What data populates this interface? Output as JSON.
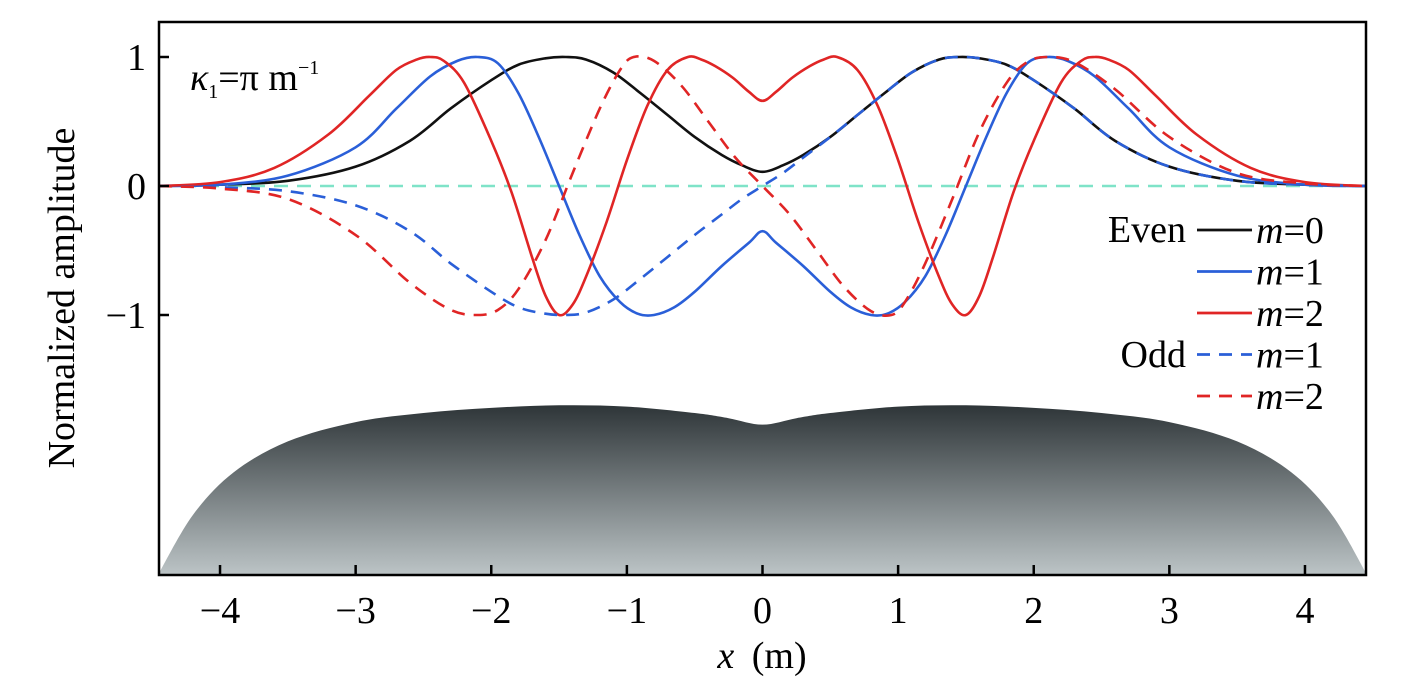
{
  "chart_data": {
    "type": "line",
    "xlabel_var": "x",
    "xlabel_unit": "(m)",
    "ylabel": "Normalized amplitude",
    "xlim": [
      -4.45,
      4.45
    ],
    "ylim": [
      -3.0,
      1.25
    ],
    "x_ticks": [
      -4,
      -3,
      -2,
      -1,
      0,
      1,
      2,
      3,
      4
    ],
    "x_tick_labels": [
      "−4",
      "−3",
      "−2",
      "−1",
      "0",
      "1",
      "2",
      "3",
      "4"
    ],
    "y_ticks": [
      1,
      0,
      -1
    ],
    "y_tick_labels": [
      "1",
      "0",
      "−1"
    ],
    "annotation": {
      "symbol": "κ",
      "sub": "1",
      "mid": "=π m",
      "sup": "−1"
    },
    "zero_line": {
      "y": 0,
      "color": "#7fe3c8"
    },
    "legend": {
      "placement": "right",
      "even_label": "Even",
      "odd_label": "Odd",
      "entries": [
        {
          "group": "Even",
          "var": "m",
          "eq": "=0",
          "color": "#111111",
          "dash": false
        },
        {
          "group": "Even",
          "var": "m",
          "eq": "=1",
          "color": "#2a5fd8",
          "dash": false
        },
        {
          "group": "Even",
          "var": "m",
          "eq": "=2",
          "color": "#e02525",
          "dash": false
        },
        {
          "group": "Odd",
          "var": "m",
          "eq": "=1",
          "color": "#2a5fd8",
          "dash": true
        },
        {
          "group": "Odd",
          "var": "m",
          "eq": "=2",
          "color": "#e02525",
          "dash": true
        }
      ]
    },
    "series": [
      {
        "name": "Even m=0",
        "color": "#111111",
        "dash": false,
        "x": [
          -4.45,
          -4.0,
          -3.5,
          -3.0,
          -2.6,
          -2.3,
          -2.0,
          -1.8,
          -1.6,
          -1.45,
          -1.3,
          -1.1,
          -0.9,
          -0.7,
          -0.5,
          -0.3,
          -0.15,
          0,
          0.15,
          0.3,
          0.5,
          0.7,
          0.9,
          1.1,
          1.3,
          1.45,
          1.6,
          1.8,
          2.0,
          2.3,
          2.6,
          3.0,
          3.5,
          4.0,
          4.45
        ],
        "y": [
          0.0,
          0.01,
          0.04,
          0.15,
          0.35,
          0.6,
          0.82,
          0.94,
          0.99,
          1.0,
          0.98,
          0.88,
          0.72,
          0.55,
          0.38,
          0.24,
          0.16,
          0.11,
          0.16,
          0.24,
          0.38,
          0.55,
          0.72,
          0.88,
          0.98,
          1.0,
          0.99,
          0.94,
          0.82,
          0.6,
          0.35,
          0.15,
          0.04,
          0.01,
          0.0
        ]
      },
      {
        "name": "Even m=1",
        "color": "#2a5fd8",
        "dash": false,
        "x": [
          -4.45,
          -4.0,
          -3.5,
          -3.0,
          -2.7,
          -2.45,
          -2.25,
          -2.1,
          -1.95,
          -1.8,
          -1.65,
          -1.5,
          -1.35,
          -1.2,
          -1.05,
          -0.92,
          -0.8,
          -0.65,
          -0.5,
          -0.3,
          -0.1,
          0,
          0.1,
          0.3,
          0.5,
          0.65,
          0.8,
          0.92,
          1.05,
          1.2,
          1.35,
          1.5,
          1.65,
          1.8,
          1.95,
          2.1,
          2.25,
          2.45,
          2.7,
          3.0,
          3.5,
          4.0,
          4.45
        ],
        "y": [
          0.0,
          0.01,
          0.08,
          0.3,
          0.6,
          0.85,
          0.97,
          1.0,
          0.95,
          0.72,
          0.38,
          0.0,
          -0.38,
          -0.7,
          -0.9,
          -0.99,
          -1.0,
          -0.94,
          -0.82,
          -0.62,
          -0.44,
          -0.35,
          -0.44,
          -0.62,
          -0.82,
          -0.94,
          -1.0,
          -0.99,
          -0.9,
          -0.7,
          -0.38,
          0.0,
          0.38,
          0.72,
          0.95,
          1.0,
          0.97,
          0.85,
          0.6,
          0.3,
          0.08,
          0.01,
          0.0
        ]
      },
      {
        "name": "Even m=2",
        "color": "#e02525",
        "dash": false,
        "x": [
          -4.45,
          -4.0,
          -3.6,
          -3.2,
          -2.9,
          -2.7,
          -2.55,
          -2.45,
          -2.35,
          -2.2,
          -2.0,
          -1.85,
          -1.7,
          -1.6,
          -1.5,
          -1.4,
          -1.3,
          -1.15,
          -1.0,
          -0.85,
          -0.7,
          -0.55,
          -0.45,
          -0.35,
          -0.22,
          -0.1,
          0,
          0.1,
          0.22,
          0.35,
          0.45,
          0.55,
          0.7,
          0.85,
          1.0,
          1.15,
          1.3,
          1.4,
          1.5,
          1.6,
          1.7,
          1.85,
          2.0,
          2.2,
          2.35,
          2.45,
          2.55,
          2.7,
          2.9,
          3.2,
          3.6,
          4.0,
          4.45
        ],
        "y": [
          0.0,
          0.03,
          0.14,
          0.4,
          0.7,
          0.9,
          0.98,
          1.0,
          0.97,
          0.8,
          0.35,
          -0.05,
          -0.55,
          -0.85,
          -1.0,
          -0.92,
          -0.7,
          -0.28,
          0.2,
          0.62,
          0.9,
          1.0,
          0.98,
          0.93,
          0.84,
          0.73,
          0.66,
          0.73,
          0.84,
          0.93,
          0.98,
          1.0,
          0.9,
          0.62,
          0.2,
          -0.28,
          -0.7,
          -0.92,
          -1.0,
          -0.85,
          -0.55,
          -0.05,
          0.35,
          0.8,
          0.97,
          1.0,
          0.98,
          0.9,
          0.7,
          0.4,
          0.14,
          0.03,
          0.0
        ]
      },
      {
        "name": "Odd m=1",
        "color": "#2a5fd8",
        "dash": true,
        "x": [
          -4.45,
          -4.0,
          -3.5,
          -3.0,
          -2.6,
          -2.3,
          -2.0,
          -1.8,
          -1.6,
          -1.45,
          -1.3,
          -1.1,
          -0.9,
          -0.7,
          -0.5,
          -0.3,
          -0.15,
          0,
          0.15,
          0.3,
          0.5,
          0.7,
          0.9,
          1.1,
          1.3,
          1.45,
          1.6,
          1.8,
          2.0,
          2.3,
          2.6,
          3.0,
          3.5,
          4.0,
          4.45
        ],
        "y": [
          0.0,
          -0.01,
          -0.04,
          -0.15,
          -0.35,
          -0.6,
          -0.82,
          -0.94,
          -0.99,
          -1.0,
          -0.98,
          -0.88,
          -0.72,
          -0.55,
          -0.38,
          -0.22,
          -0.1,
          0.0,
          0.1,
          0.22,
          0.38,
          0.55,
          0.72,
          0.88,
          0.98,
          1.0,
          0.99,
          0.94,
          0.82,
          0.6,
          0.35,
          0.15,
          0.04,
          0.01,
          0.0
        ]
      },
      {
        "name": "Odd m=2",
        "color": "#e02525",
        "dash": true,
        "x": [
          -4.45,
          -4.0,
          -3.5,
          -3.0,
          -2.6,
          -2.3,
          -2.1,
          -1.95,
          -1.8,
          -1.6,
          -1.4,
          -1.2,
          -1.05,
          -0.95,
          -0.8,
          -0.6,
          -0.4,
          -0.2,
          0,
          0.2,
          0.4,
          0.6,
          0.8,
          0.95,
          1.05,
          1.2,
          1.4,
          1.6,
          1.8,
          1.95,
          2.1,
          2.3,
          2.6,
          3.0,
          3.5,
          4.0,
          4.45
        ],
        "y": [
          0.0,
          -0.02,
          -0.1,
          -0.38,
          -0.75,
          -0.96,
          -1.0,
          -0.96,
          -0.8,
          -0.42,
          0.1,
          0.6,
          0.9,
          1.0,
          0.97,
          0.78,
          0.5,
          0.22,
          0.0,
          -0.22,
          -0.5,
          -0.78,
          -0.97,
          -1.0,
          -0.9,
          -0.6,
          -0.1,
          0.42,
          0.8,
          0.96,
          1.0,
          0.96,
          0.75,
          0.38,
          0.1,
          0.02,
          0.0
        ]
      }
    ],
    "profile": {
      "x": [
        -4.45,
        -4.2,
        -3.9,
        -3.5,
        -3.0,
        -2.5,
        -2.0,
        -1.5,
        -1.0,
        -0.5,
        -0.25,
        0,
        0.25,
        0.5,
        1.0,
        1.5,
        2.0,
        2.5,
        3.0,
        3.5,
        3.9,
        4.2,
        4.45
      ],
      "y": [
        -3.0,
        -2.55,
        -2.22,
        -1.98,
        -1.83,
        -1.76,
        -1.72,
        -1.7,
        -1.71,
        -1.76,
        -1.8,
        -1.85,
        -1.8,
        -1.76,
        -1.71,
        -1.7,
        -1.72,
        -1.76,
        -1.83,
        -1.98,
        -2.22,
        -2.55,
        -3.0
      ],
      "color_top": "#2e3538",
      "color_bottom": "#bcc4c6"
    }
  }
}
